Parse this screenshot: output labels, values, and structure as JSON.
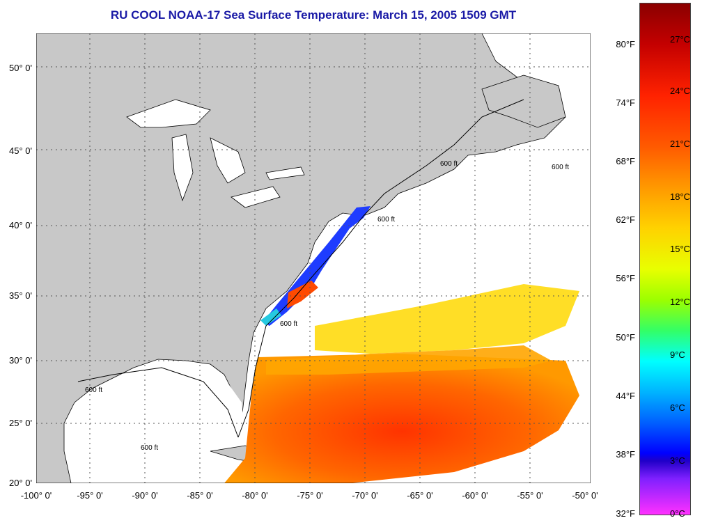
{
  "title": "RU COOL  NOAA-17  Sea Surface Temperature:  March 15, 2005 1509 GMT",
  "map": {
    "latitude_labels": [
      "50° 0'",
      "45° 0'",
      "40° 0'",
      "35° 0'",
      "30° 0'",
      "25° 0'",
      "20° 0'"
    ],
    "longitude_labels": [
      "-100° 0'",
      "-95° 0'",
      "-90° 0'",
      "-85° 0'",
      "-80° 0'",
      "-75° 0'",
      "-70° 0'",
      "-65° 0'",
      "-60° 0'",
      "-55° 0'",
      "-50° 0'"
    ],
    "isobath_label": "600 ft",
    "land_color": "#c8c8c8",
    "no_data_color": "#ffffff",
    "grid": "dotted"
  },
  "colorbar": {
    "fahrenheit_labels": [
      "80°F",
      "74°F",
      "68°F",
      "62°F",
      "56°F",
      "50°F",
      "44°F",
      "38°F",
      "32°F"
    ],
    "celsius_labels": [
      "27°C",
      "24°C",
      "21°C",
      "18°C",
      "15°C",
      "12°C",
      "9°C",
      "6°C",
      "3°C",
      "0°C"
    ]
  }
}
